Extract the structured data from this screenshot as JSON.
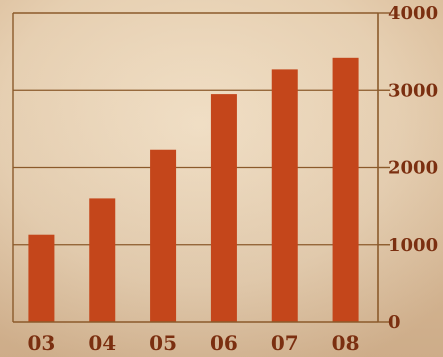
{
  "chart_data": {
    "type": "bar",
    "categories": [
      "03",
      "04",
      "05",
      "06",
      "07",
      "08"
    ],
    "values": [
      1130,
      1600,
      2230,
      2950,
      3270,
      3420
    ],
    "title": "",
    "xlabel": "",
    "ylabel": "",
    "ylim": [
      0,
      4000
    ],
    "yticks": [
      0,
      1000,
      2000,
      3000,
      4000
    ],
    "ytick_labels": [
      "0",
      "1000",
      "2000",
      "3000",
      "4000"
    ],
    "grid": true,
    "legend": "none",
    "y_axis_side": "right"
  },
  "colors": {
    "bar": "#c4461b",
    "axis": "#8b5a2b",
    "grid": "#8b5a2b",
    "text": "#7b2f10",
    "background": "#e7d1b3"
  }
}
